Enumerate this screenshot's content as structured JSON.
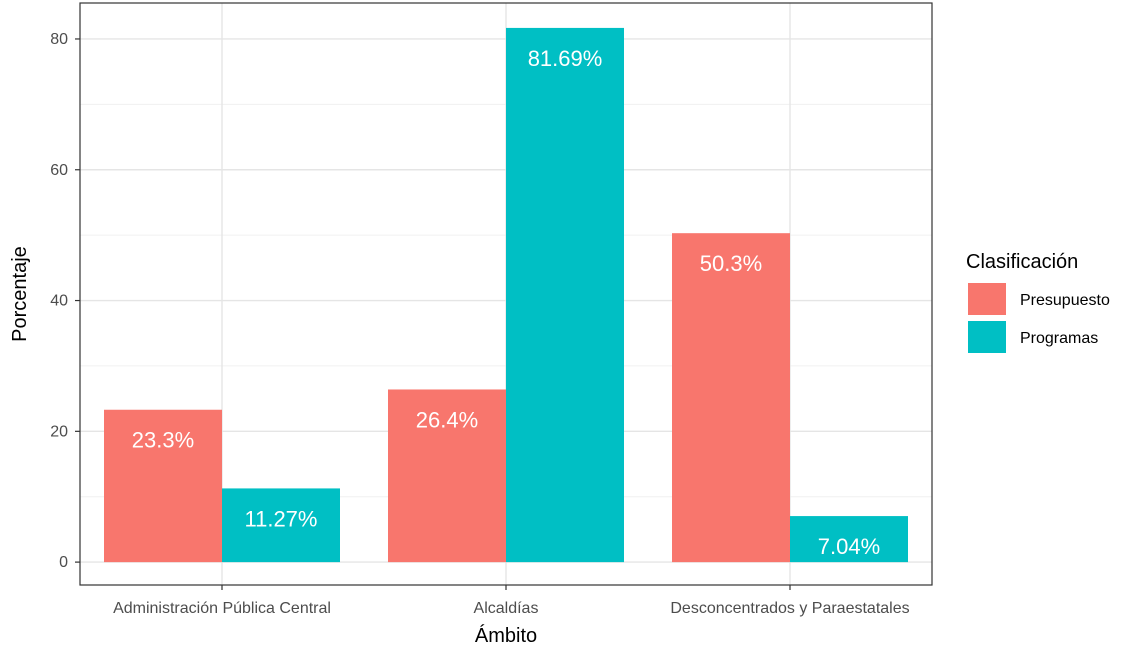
{
  "chart_data": {
    "type": "bar",
    "categories": [
      "Administración Pública Central",
      "Alcaldías",
      "Desconcentrados y Paraestatales"
    ],
    "series": [
      {
        "name": "Presupuesto",
        "values": [
          23.3,
          26.4,
          50.3
        ],
        "labels": [
          "23.3%",
          "26.4%",
          "50.3%"
        ],
        "color": "#F8766D"
      },
      {
        "name": "Programas",
        "values": [
          11.27,
          81.69,
          7.04
        ],
        "labels": [
          "11.27%",
          "81.69%",
          "7.04%"
        ],
        "color": "#00BFC4"
      }
    ],
    "xlabel": "Ámbito",
    "ylabel": "Porcentaje",
    "ylim": [
      -3.5,
      85.5
    ],
    "yticks": [
      0,
      20,
      40,
      60,
      80
    ],
    "legend_title": "Clasificación",
    "legend_position": "right",
    "grid": true,
    "panel_border": true
  }
}
